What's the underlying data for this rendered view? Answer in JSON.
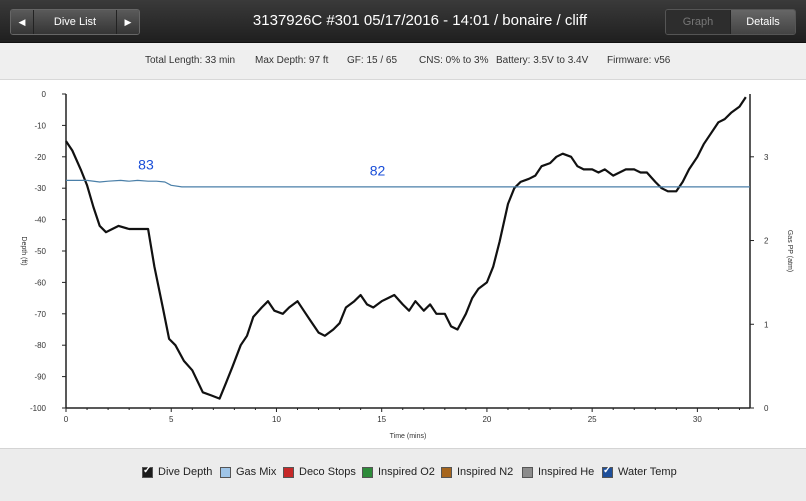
{
  "window": {
    "title": "3137926C #301 05/17/2016 - 14:01  / bonaire / cliff",
    "nav": {
      "prev_icon": "◀",
      "list_label": "Dive List",
      "next_icon": "▶"
    },
    "tabs": [
      {
        "label": "Graph",
        "active": false
      },
      {
        "label": "Details",
        "active": true
      }
    ]
  },
  "info": {
    "total_length": "Total Length: 33 min",
    "max_depth": "Max Depth: 97 ft",
    "gf": "GF: 15 / 65",
    "cns": "CNS: 0% to 3%",
    "battery": "Battery: 3.5V to 3.4V",
    "firmware": "Firmware: v56"
  },
  "chart_data": {
    "type": "line",
    "xlabel": "Time (mins)",
    "ylabel_left": "Depth (ft)",
    "ylabel_right": "Gas PP (atm)",
    "xlim": [
      0,
      32.5
    ],
    "ylim_left": [
      -100,
      0
    ],
    "ylim_right": [
      0,
      3.75
    ],
    "x_ticks": [
      0,
      5,
      10,
      15,
      20,
      25,
      30
    ],
    "y_ticks_left": [
      0,
      -10,
      -20,
      -30,
      -40,
      -50,
      -60,
      -70,
      -80,
      -90,
      -100
    ],
    "y_ticks_right": [
      0,
      1,
      2,
      3
    ],
    "grid": false,
    "series": [
      {
        "name": "Dive Depth",
        "color": "#111111",
        "x": [
          0,
          0.3,
          0.7,
          1.0,
          1.3,
          1.6,
          1.9,
          2.2,
          2.5,
          3.0,
          3.5,
          3.9,
          4.2,
          4.6,
          4.9,
          5.2,
          5.6,
          6.0,
          6.5,
          6.9,
          7.3,
          7.6,
          7.9,
          8.3,
          8.6,
          8.9,
          9.3,
          9.6,
          9.9,
          10.3,
          10.6,
          11.0,
          11.3,
          11.6,
          12.0,
          12.3,
          12.7,
          13.0,
          13.3,
          13.7,
          14.0,
          14.3,
          14.6,
          15.0,
          15.3,
          15.6,
          16.0,
          16.3,
          16.6,
          17.0,
          17.3,
          17.6,
          18.0,
          18.3,
          18.6,
          19.0,
          19.3,
          19.6,
          20.0,
          20.3,
          20.6,
          21.0,
          21.3,
          21.6,
          22.0,
          22.3,
          22.6,
          23.0,
          23.3,
          23.6,
          24.0,
          24.3,
          24.6,
          25.0,
          25.3,
          25.6,
          26.0,
          26.3,
          26.6,
          27.0,
          27.3,
          27.6,
          28.0,
          28.3,
          28.6,
          29.0,
          29.3,
          29.6,
          30.0,
          30.3,
          30.6,
          31.0,
          31.3,
          31.6,
          32.0,
          32.3
        ],
        "y": [
          -15,
          -18,
          -24,
          -29,
          -36,
          -42,
          -44,
          -43,
          -42,
          -43,
          -43,
          -43,
          -55,
          -68,
          -78,
          -80,
          -85,
          -88,
          -95,
          -96,
          -97,
          -92,
          -87,
          -80,
          -77,
          -71,
          -68,
          -66,
          -69,
          -70,
          -68,
          -66,
          -69,
          -72,
          -76,
          -77,
          -75,
          -73,
          -68,
          -66,
          -64,
          -67,
          -68,
          -66,
          -65,
          -64,
          -67,
          -69,
          -66,
          -69,
          -67,
          -70,
          -70,
          -74,
          -75,
          -70,
          -65,
          -62,
          -60,
          -55,
          -47,
          -35,
          -30,
          -28,
          -27,
          -26,
          -23,
          -22,
          -20,
          -19,
          -20,
          -23,
          -24,
          -24,
          -25,
          -24,
          -26,
          -25,
          -24,
          -24,
          -25,
          -25,
          -28,
          -30,
          -31,
          -31,
          -28,
          -24,
          -20,
          -16,
          -13,
          -9,
          -8,
          -6,
          -4,
          -1
        ]
      },
      {
        "name": "Water Temp",
        "color": "#4a7fa8",
        "x": [
          0,
          1.0,
          1.6,
          2.0,
          2.6,
          3.0,
          3.4,
          3.9,
          4.3,
          4.7,
          5.0,
          5.5,
          10,
          20,
          25,
          30,
          32.5
        ],
        "y": [
          83,
          83,
          82.8,
          82.9,
          83,
          82.9,
          83,
          82.9,
          82.9,
          82.8,
          82.4,
          82.2,
          82.2,
          82.2,
          82.2,
          82.2,
          82.2
        ]
      }
    ],
    "annotations": [
      {
        "text": "83",
        "x": 3.8,
        "y": -24
      },
      {
        "text": "82",
        "x": 14.8,
        "y": -26
      }
    ]
  },
  "legend": [
    {
      "label": "Dive Depth",
      "checked": true,
      "color": "#111111"
    },
    {
      "label": "Gas Mix",
      "checked": false,
      "color": "#9fc5e8"
    },
    {
      "label": "Deco Stops",
      "checked": false,
      "color": "#c62828"
    },
    {
      "label": "Inspired O2",
      "checked": false,
      "color": "#2e8b3a"
    },
    {
      "label": "Inspired N2",
      "checked": false,
      "color": "#a5651d"
    },
    {
      "label": "Inspired He",
      "checked": false,
      "color": "#8c8c8c"
    },
    {
      "label": "Water Temp",
      "checked": true,
      "color": "#1e5aa8"
    }
  ]
}
